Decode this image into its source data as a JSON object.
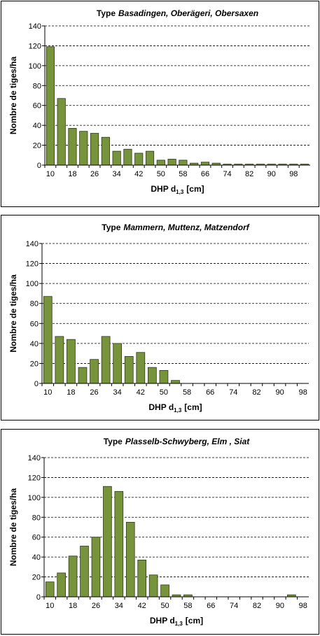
{
  "chart_data": [
    {
      "type": "bar",
      "title": {
        "prefix": "Type",
        "names": "Basadingen,  Oberägeri, Obersaxen"
      },
      "x_label": {
        "main": "DHP d",
        "sub": "1,3",
        "unit": "[cm]"
      },
      "y_label": "Nombre de tiges/ha",
      "categories": [
        "10",
        null,
        "18",
        null,
        "26",
        null,
        "34",
        null,
        "42",
        null,
        "50",
        null,
        "58",
        null,
        "66",
        null,
        "74",
        null,
        "82",
        null,
        "90",
        null,
        "98",
        null
      ],
      "values": [
        119,
        67,
        37,
        34,
        32,
        28,
        14,
        16,
        12,
        14,
        5,
        6,
        5,
        2,
        3,
        2,
        1,
        1,
        1,
        1,
        1,
        1,
        1,
        1
      ],
      "color": "#77933c",
      "ylim": [
        0,
        140
      ],
      "yticks": [
        0,
        20,
        40,
        60,
        80,
        100,
        120,
        140
      ],
      "grid": true
    },
    {
      "type": "bar",
      "title": {
        "prefix": "Type",
        "names": "Mammern, Muttenz, Matzendorf"
      },
      "x_label": {
        "main": "DHP d",
        "sub": "1,3",
        "unit": "[cm]"
      },
      "y_label": "Nombre de tiges/ha",
      "categories": [
        "10",
        null,
        "18",
        null,
        "26",
        null,
        "34",
        null,
        "42",
        null,
        "50",
        null,
        "58",
        null,
        "66",
        null,
        "74",
        null,
        "82",
        null,
        "90",
        null,
        "98"
      ],
      "values": [
        87,
        47,
        44,
        16,
        24,
        47,
        40,
        27,
        31,
        16,
        13,
        3,
        0,
        0,
        0,
        0,
        0,
        0,
        0,
        0,
        0,
        0,
        0
      ],
      "color": "#77933c",
      "ylim": [
        0,
        140
      ],
      "yticks": [
        0,
        20,
        40,
        60,
        80,
        100,
        120,
        140
      ],
      "grid": true
    },
    {
      "type": "bar",
      "title": {
        "prefix": "Type",
        "names": "Plasselb-Schwyberg,  Elm , Siat"
      },
      "x_label": {
        "main": "DHP d",
        "sub": "1,3",
        "unit": "[cm]"
      },
      "y_label": "Nombre de tiges/ha",
      "categories": [
        "10",
        null,
        "18",
        null,
        "26",
        null,
        "34",
        null,
        "42",
        null,
        "50",
        null,
        "58",
        null,
        "66",
        null,
        "74",
        null,
        "82",
        null,
        "90",
        null,
        "98"
      ],
      "values": [
        15,
        24,
        41,
        51,
        60,
        111,
        106,
        75,
        37,
        22,
        12,
        2,
        2,
        0,
        0,
        0,
        0,
        0,
        0,
        0,
        0,
        2,
        0
      ],
      "color": "#77933c",
      "ylim": [
        0,
        140
      ],
      "yticks": [
        0,
        20,
        40,
        60,
        80,
        100,
        120,
        140
      ],
      "grid": true
    }
  ]
}
